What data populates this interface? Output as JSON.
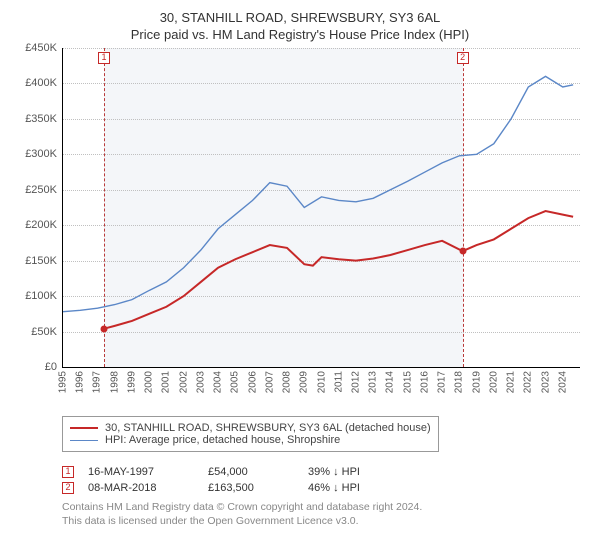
{
  "title": {
    "line1": "30, STANHILL ROAD, SHREWSBURY, SY3 6AL",
    "line2": "Price paid vs. HM Land Registry's House Price Index (HPI)"
  },
  "chart": {
    "type": "line",
    "background_color": "#ffffff",
    "shade_color": "#f4f6f9",
    "grid_color": "#c0c0c0",
    "axis_color": "#000000",
    "tick_font_size": 11,
    "y": {
      "min": 0,
      "max": 450,
      "tick_step": 50,
      "tick_prefix": "£",
      "tick_suffix": "K",
      "ticks": [
        0,
        50,
        100,
        150,
        200,
        250,
        300,
        350,
        400,
        450
      ]
    },
    "x": {
      "min": 1995,
      "max": 2025,
      "ticks": [
        1995,
        1996,
        1997,
        1998,
        1999,
        2000,
        2001,
        2002,
        2003,
        2004,
        2005,
        2006,
        2007,
        2008,
        2009,
        2010,
        2011,
        2012,
        2013,
        2014,
        2015,
        2016,
        2017,
        2018,
        2019,
        2020,
        2021,
        2022,
        2023,
        2024
      ]
    },
    "series": [
      {
        "id": "price_paid",
        "label": "30, STANHILL ROAD, SHREWSBURY, SY3 6AL (detached house)",
        "color": "#c62828",
        "line_width": 2,
        "data": [
          [
            1997.38,
            54
          ],
          [
            1998,
            58
          ],
          [
            1999,
            65
          ],
          [
            2000,
            75
          ],
          [
            2001,
            85
          ],
          [
            2002,
            100
          ],
          [
            2003,
            120
          ],
          [
            2004,
            140
          ],
          [
            2005,
            152
          ],
          [
            2006,
            162
          ],
          [
            2007,
            172
          ],
          [
            2008,
            168
          ],
          [
            2009,
            145
          ],
          [
            2009.5,
            143
          ],
          [
            2010,
            155
          ],
          [
            2011,
            152
          ],
          [
            2012,
            150
          ],
          [
            2013,
            153
          ],
          [
            2014,
            158
          ],
          [
            2015,
            165
          ],
          [
            2016,
            172
          ],
          [
            2017,
            178
          ],
          [
            2018.19,
            163.5
          ],
          [
            2019,
            172
          ],
          [
            2020,
            180
          ],
          [
            2021,
            195
          ],
          [
            2022,
            210
          ],
          [
            2023,
            220
          ],
          [
            2024,
            215
          ],
          [
            2024.6,
            212
          ]
        ]
      },
      {
        "id": "hpi",
        "label": "HPI: Average price, detached house, Shropshire",
        "color": "#5b87c7",
        "line_width": 1.4,
        "data": [
          [
            1995,
            78
          ],
          [
            1996,
            80
          ],
          [
            1997,
            83
          ],
          [
            1998,
            88
          ],
          [
            1999,
            95
          ],
          [
            2000,
            108
          ],
          [
            2001,
            120
          ],
          [
            2002,
            140
          ],
          [
            2003,
            165
          ],
          [
            2004,
            195
          ],
          [
            2005,
            215
          ],
          [
            2006,
            235
          ],
          [
            2007,
            260
          ],
          [
            2008,
            255
          ],
          [
            2009,
            225
          ],
          [
            2010,
            240
          ],
          [
            2011,
            235
          ],
          [
            2012,
            233
          ],
          [
            2013,
            238
          ],
          [
            2014,
            250
          ],
          [
            2015,
            262
          ],
          [
            2016,
            275
          ],
          [
            2017,
            288
          ],
          [
            2018,
            298
          ],
          [
            2019,
            300
          ],
          [
            2020,
            315
          ],
          [
            2021,
            350
          ],
          [
            2022,
            395
          ],
          [
            2023,
            410
          ],
          [
            2024,
            395
          ],
          [
            2024.6,
            398
          ]
        ]
      }
    ],
    "sale_markers": [
      {
        "num": "1",
        "x": 1997.38,
        "y": 54,
        "dash_color": "#b93a3a"
      },
      {
        "num": "2",
        "x": 2018.19,
        "y": 163.5,
        "dash_color": "#b93a3a"
      }
    ],
    "shade_range": [
      1997.38,
      2018.19
    ]
  },
  "legend": {
    "items": [
      {
        "series": "price_paid"
      },
      {
        "series": "hpi"
      }
    ]
  },
  "sales": [
    {
      "num": "1",
      "date": "16-MAY-1997",
      "price": "£54,000",
      "pct": "39% ↓ HPI"
    },
    {
      "num": "2",
      "date": "08-MAR-2018",
      "price": "£163,500",
      "pct": "46% ↓ HPI"
    }
  ],
  "footer": {
    "line1": "Contains HM Land Registry data © Crown copyright and database right 2024.",
    "line2": "This data is licensed under the Open Government Licence v3.0."
  }
}
